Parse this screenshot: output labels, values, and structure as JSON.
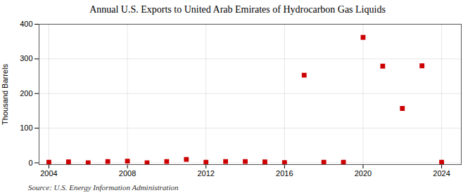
{
  "chart_data": {
    "type": "scatter",
    "title": "Annual U.S. Exports to United Arab Emirates of Hydrocarbon Gas Liquids",
    "ylabel": "Thousand Barrels",
    "source": "Source: U.S. Energy Information Administration",
    "x": [
      2004,
      2005,
      2006,
      2007,
      2008,
      2009,
      2010,
      2011,
      2012,
      2013,
      2014,
      2015,
      2016,
      2017,
      2018,
      2019,
      2020,
      2021,
      2022,
      2023,
      2024
    ],
    "values": [
      2,
      3,
      0,
      4,
      5,
      0,
      4,
      10,
      2,
      4,
      4,
      3,
      1,
      253,
      2,
      2,
      362,
      279,
      157,
      280,
      2
    ],
    "color": "#cc0000",
    "marker": "square",
    "xlim": [
      2003.5,
      2025
    ],
    "xticks": [
      2004,
      2008,
      2012,
      2016,
      2020,
      2024
    ],
    "ylim": [
      -5,
      400
    ],
    "yticks": [
      0,
      100,
      200,
      300,
      400
    ],
    "grid": true
  }
}
